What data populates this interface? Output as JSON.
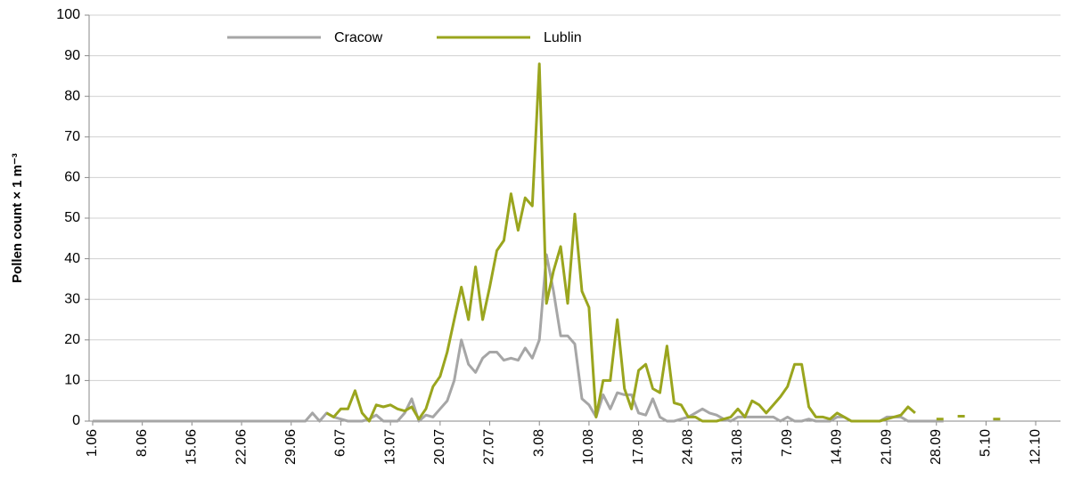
{
  "chart_data": {
    "type": "line",
    "y_label": "Pollen count × 1 m⁻³",
    "categories": [
      "1.06",
      null,
      null,
      null,
      null,
      null,
      null,
      "8.06",
      null,
      null,
      null,
      null,
      null,
      null,
      "15.06",
      null,
      null,
      null,
      null,
      null,
      null,
      "22.06",
      null,
      null,
      null,
      null,
      null,
      null,
      "29.06",
      null,
      null,
      null,
      null,
      null,
      null,
      "6.07",
      null,
      null,
      null,
      null,
      null,
      null,
      "13.07",
      null,
      null,
      null,
      null,
      null,
      null,
      "20.07",
      null,
      null,
      null,
      null,
      null,
      null,
      "27.07",
      null,
      null,
      null,
      null,
      null,
      null,
      "3.08",
      null,
      null,
      null,
      null,
      null,
      null,
      "10.08",
      null,
      null,
      null,
      null,
      null,
      null,
      "17.08",
      null,
      null,
      null,
      null,
      null,
      null,
      "24.08",
      null,
      null,
      null,
      null,
      null,
      null,
      "31.08",
      null,
      null,
      null,
      null,
      null,
      null,
      "7.09",
      null,
      null,
      null,
      null,
      null,
      null,
      "14.09",
      null,
      null,
      null,
      null,
      null,
      null,
      "21.09",
      null,
      null,
      null,
      null,
      null,
      null,
      "28.09",
      null,
      null,
      null,
      null,
      null,
      null,
      "5.10",
      null,
      null,
      null,
      null,
      null,
      null,
      "12.10",
      null,
      null,
      null
    ],
    "series": [
      {
        "name": "Cracow",
        "color": "#a6a6a6",
        "values": [
          0,
          0,
          0,
          0,
          0,
          0,
          0,
          0,
          0,
          0,
          0,
          0,
          0,
          0,
          0,
          0,
          0,
          0,
          0,
          0,
          0,
          0,
          0,
          0,
          0,
          0,
          0,
          0,
          0,
          0,
          0,
          2,
          0,
          2,
          1,
          0.5,
          0,
          0,
          0,
          0.5,
          1.5,
          0,
          0,
          0,
          2,
          5.5,
          0,
          1.5,
          1,
          3,
          5,
          10,
          20,
          14,
          12,
          15.5,
          17,
          17,
          15,
          15.5,
          15,
          18,
          15.5,
          20,
          41,
          32,
          21,
          21,
          19,
          5.5,
          4,
          1,
          6.5,
          3,
          7,
          6.5,
          6.5,
          2,
          1.5,
          5.5,
          1,
          0,
          0,
          0.5,
          1,
          2,
          3,
          2,
          1.5,
          0.5,
          0,
          1,
          1,
          1,
          1,
          1,
          1,
          0,
          1,
          0,
          0,
          0.5,
          0,
          0,
          0,
          1,
          1,
          0,
          0,
          0,
          0,
          0,
          1,
          1,
          1,
          0,
          0,
          0,
          0,
          0,
          0,
          null,
          null,
          null,
          null,
          null,
          null,
          null,
          null,
          null,
          null,
          null,
          null,
          null,
          null,
          null,
          null
        ]
      },
      {
        "name": "Lublin",
        "color": "#9aa51e",
        "values": [
          null,
          null,
          null,
          null,
          null,
          null,
          null,
          null,
          null,
          null,
          null,
          null,
          null,
          null,
          null,
          null,
          null,
          null,
          null,
          null,
          null,
          null,
          null,
          null,
          null,
          null,
          null,
          null,
          null,
          null,
          null,
          null,
          null,
          2,
          1,
          3,
          3,
          7.5,
          2,
          0,
          4,
          3.5,
          4,
          3,
          2.5,
          3.5,
          0.5,
          3,
          8.5,
          11,
          17,
          25,
          33,
          25,
          38,
          25,
          33,
          42,
          44.5,
          56,
          47,
          55,
          53,
          88,
          29,
          37,
          43,
          29,
          51,
          32,
          28,
          1,
          10,
          10,
          25,
          8,
          3,
          12.5,
          14,
          8,
          7,
          18.5,
          4.5,
          4,
          1,
          1,
          0,
          0,
          0,
          0.5,
          1,
          3,
          1,
          5,
          4,
          2,
          4,
          6,
          8.5,
          14,
          14,
          3.5,
          1,
          1,
          0.5,
          2,
          1,
          0,
          0,
          0,
          0,
          0,
          0.5,
          1,
          1.5,
          3.5,
          2,
          null,
          null,
          0.5,
          0.5,
          null,
          1.2,
          1.2,
          null,
          null,
          null,
          0.5,
          0.5,
          null,
          null,
          null,
          null,
          null,
          null,
          null,
          null
        ]
      }
    ],
    "ylim": [
      0,
      100
    ],
    "yticks": [
      0,
      10,
      20,
      30,
      40,
      50,
      60,
      70,
      80,
      90,
      100
    ],
    "grid": true,
    "legend": "top"
  }
}
